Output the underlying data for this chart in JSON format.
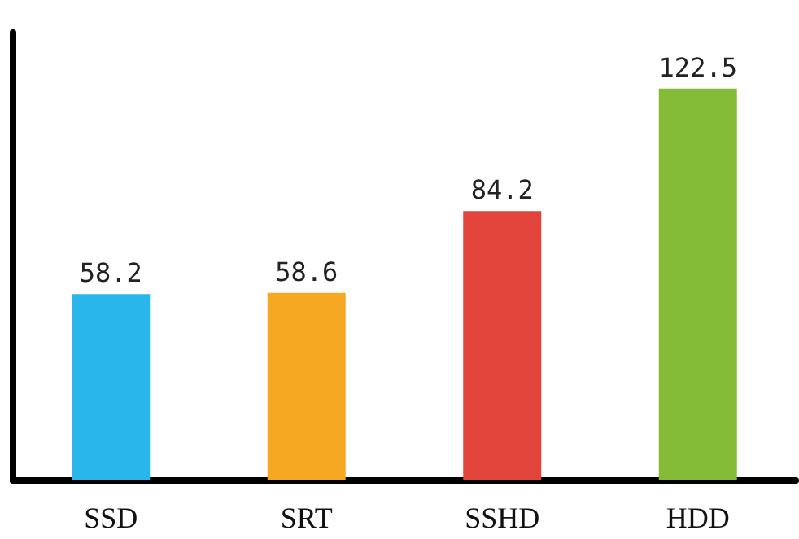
{
  "chart_data": {
    "type": "bar",
    "categories": [
      "SSD",
      "SRT",
      "SSHD",
      "HDD"
    ],
    "values": [
      58.2,
      58.6,
      84.2,
      122.5
    ],
    "colors": [
      "#29b6ea",
      "#f6a823",
      "#e2433a",
      "#84bb37"
    ],
    "data_labels": true,
    "tick_labels": "x"
  }
}
